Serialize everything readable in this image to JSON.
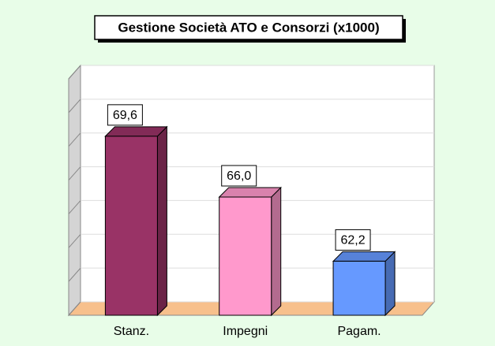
{
  "chart_data": {
    "type": "bar3d",
    "title": "Gestione Società ATO e Consorzi (x1000)",
    "categories": [
      "Stanz.",
      "Impegni",
      "Pagam."
    ],
    "series": [
      {
        "values": [
          69.6,
          66.0,
          62.2
        ],
        "value_labels": [
          "69,6",
          "66,0",
          "62,2"
        ],
        "colors": [
          "#993366",
          "#ff99cc",
          "#6699ff"
        ]
      }
    ],
    "ylim": [
      59,
      73
    ],
    "yticks": [
      59,
      61,
      63,
      65,
      67,
      69,
      71,
      73
    ],
    "grid": true
  }
}
